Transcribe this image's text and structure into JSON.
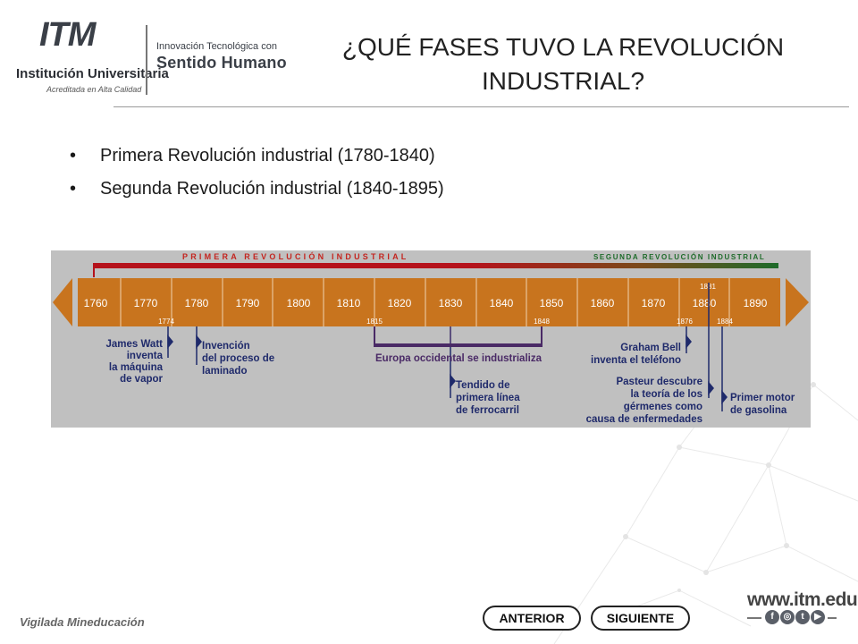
{
  "header": {
    "logo_text": "ITM",
    "institution": "Institución Universitaria",
    "accredited": "Acreditada en Alta Calidad",
    "tagline_top": "Innovación Tecnológica con",
    "tagline_bottom": "Sentido Humano"
  },
  "slide": {
    "title": "¿QUÉ FASES TUVO LA REVOLUCIÓN INDUSTRIAL?",
    "bullets": [
      "Primera Revolución industrial (1780-1840)",
      "Segunda Revolución industrial (1840-1895)"
    ]
  },
  "timeline": {
    "first_label": "PRIMERA REVOLUCIÓN INDUSTRIAL",
    "second_label": "SEGUNDA REVOLUCIÓN INDUSTRIAL",
    "decades": [
      "1760",
      "1770",
      "1780",
      "1790",
      "1800",
      "1810",
      "1820",
      "1830",
      "1840",
      "1850",
      "1860",
      "1870",
      "1880",
      "1890"
    ],
    "marker_years": [
      "1774",
      "1815",
      "1848",
      "1876",
      "1881",
      "1884"
    ],
    "events": {
      "watt": [
        "James Watt",
        "inventa",
        "la máquina",
        "de vapor"
      ],
      "laminado": [
        "Invención",
        "del proceso de",
        "laminado"
      ],
      "europa": "Europa occidental se industrializa",
      "ferrocarril": [
        "Tendido de",
        "primera línea",
        "de ferrocarril"
      ],
      "bell": [
        "Graham Bell",
        "inventa el teléfono"
      ],
      "pasteur": [
        "Pasteur descubre",
        "la teoría de los",
        "gérmenes como",
        "causa de enfermedades"
      ],
      "motor": [
        "Primer motor",
        "de gasolina"
      ]
    },
    "colors": {
      "panel": "#bdbdbd",
      "band": "#c8741e",
      "first": "#b5121b",
      "second": "#1e6b2a",
      "text_dark": "#1f2a6b",
      "europa_bar": "#4a2a66"
    }
  },
  "footer": {
    "vigilada": "Vigilada Mineducación",
    "prev_button": "ANTERIOR",
    "next_button": "SIGUIENTE",
    "website": "www.itm.edu.co"
  }
}
